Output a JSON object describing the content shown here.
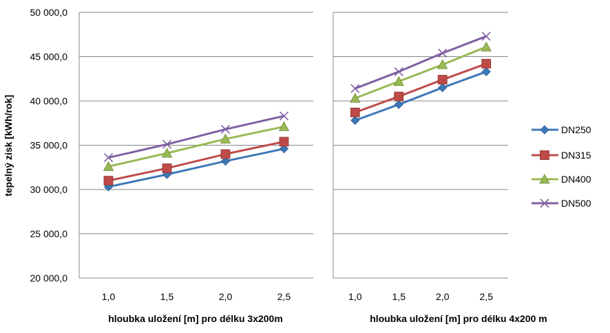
{
  "chart_data": {
    "type": "line",
    "ylabel": "tepelný zisk [kWh/rok]",
    "ylim": [
      20000,
      50000
    ],
    "yticks": [
      20000,
      25000,
      30000,
      35000,
      40000,
      45000,
      50000
    ],
    "ytick_labels": [
      "20 000,0",
      "25 000,0",
      "30 000,0",
      "35 000,0",
      "40 000,0",
      "45 000,0",
      "50 000,0"
    ],
    "grid": true,
    "legend_position": "right",
    "legend": [
      "DN250",
      "DN315",
      "DN400",
      "DN500"
    ],
    "series_styles": [
      {
        "name": "DN250",
        "color": "#3E77B7",
        "marker": "diamond"
      },
      {
        "name": "DN315",
        "color": "#BE4B48",
        "marker": "square"
      },
      {
        "name": "DN400",
        "color": "#98B954",
        "marker": "triangle"
      },
      {
        "name": "DN500",
        "color": "#7D5FA0",
        "marker": "cross"
      }
    ],
    "panels": [
      {
        "xlabel": "hloubka uložení [m] pro délku 3x200m",
        "categories": [
          "1,0",
          "1,5",
          "2,0",
          "2,5"
        ],
        "series": [
          {
            "name": "DN250",
            "values": [
              30300,
              31700,
              33200,
              34600
            ]
          },
          {
            "name": "DN315",
            "values": [
              31000,
              32400,
              34000,
              35400
            ]
          },
          {
            "name": "DN400",
            "values": [
              32600,
              34100,
              35700,
              37100
            ]
          },
          {
            "name": "DN500",
            "values": [
              33600,
              35100,
              36800,
              38300
            ]
          }
        ]
      },
      {
        "xlabel": "hloubka uložení [m] pro délku 4x200 m",
        "categories": [
          "1,0",
          "1,5",
          "2,0",
          "2,5"
        ],
        "series": [
          {
            "name": "DN250",
            "values": [
              37800,
              39600,
              41500,
              43300
            ]
          },
          {
            "name": "DN315",
            "values": [
              38700,
              40500,
              42400,
              44200
            ]
          },
          {
            "name": "DN400",
            "values": [
              40300,
              42200,
              44100,
              46100
            ]
          },
          {
            "name": "DN500",
            "values": [
              41400,
              43300,
              45400,
              47300
            ]
          }
        ]
      }
    ]
  }
}
